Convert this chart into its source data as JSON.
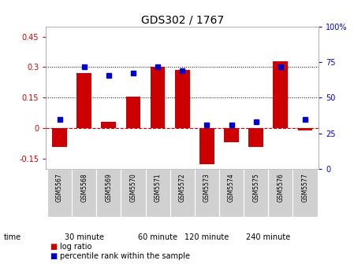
{
  "title": "GDS302 / 1767",
  "samples": [
    "GSM5567",
    "GSM5568",
    "GSM5569",
    "GSM5570",
    "GSM5571",
    "GSM5572",
    "GSM5573",
    "GSM5574",
    "GSM5575",
    "GSM5576",
    "GSM5577"
  ],
  "log_ratio": [
    -0.09,
    0.27,
    0.03,
    0.155,
    0.3,
    0.285,
    -0.175,
    -0.07,
    -0.09,
    0.33,
    -0.01
  ],
  "percentile": [
    32,
    75,
    68,
    70,
    75,
    72,
    28,
    28,
    30,
    75,
    32
  ],
  "group_labels": [
    "30 minute",
    "60 minute",
    "120 minute",
    "240 minute"
  ],
  "group_starts": [
    0,
    3,
    6,
    7
  ],
  "group_ends": [
    2,
    5,
    6,
    10
  ],
  "group_colors": [
    "#ccffcc",
    "#ccffcc",
    "#88ee88",
    "#44dd44"
  ],
  "ylim_left": [
    -0.2,
    0.5
  ],
  "ylim_right": [
    0,
    100
  ],
  "yticks_left": [
    -0.15,
    0.0,
    0.15,
    0.3,
    0.45
  ],
  "yticks_right": [
    0,
    25,
    50,
    75,
    100
  ],
  "ytick_right_labels": [
    "0",
    "25",
    "50",
    "75",
    "100%"
  ],
  "bar_color": "#cc0000",
  "dot_color": "#0000cc",
  "hline_y": 0.0,
  "dotted_lines": [
    0.15,
    0.3
  ],
  "plot_bg": "#ffffff",
  "title_fontsize": 10,
  "tick_fontsize": 7,
  "label_fontsize": 7,
  "time_label": "time",
  "legend_bar_label": "log ratio",
  "legend_dot_label": "percentile rank within the sample",
  "xlim": [
    -0.55,
    10.55
  ]
}
